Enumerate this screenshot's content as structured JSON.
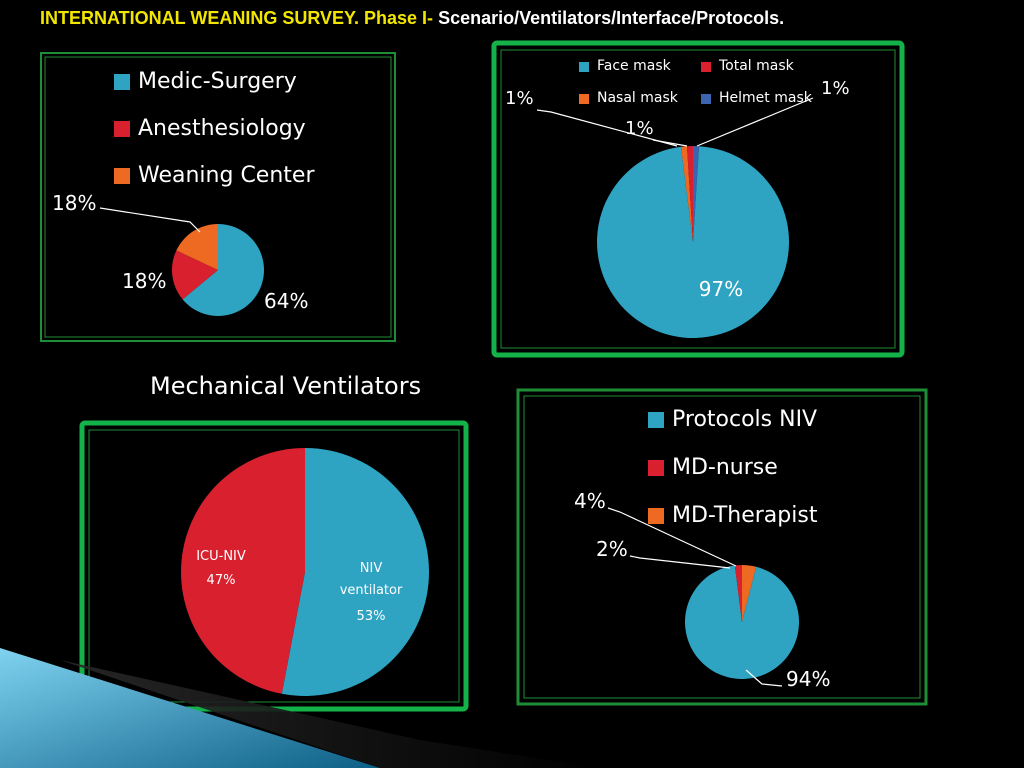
{
  "title": {
    "part1": "INTERNATIONAL  WEANING SURVEY. Phase I-",
    "part2": " Scenario/Ventilators/Interface/Protocols."
  },
  "colors": {
    "blue": "#2ea3c2",
    "red": "#d9202e",
    "orange": "#ee6a22",
    "navy": "#3c64b0",
    "frame": "#14b34a",
    "frame_thin": "#1e8e36"
  },
  "chart_data": [
    {
      "id": "scenario",
      "type": "pie",
      "legend_position": "top-left",
      "series": [
        {
          "name": "Medic-Surgery",
          "value": 64,
          "label": "64%"
        },
        {
          "name": "Anesthesiology",
          "value": 18,
          "label": "18%"
        },
        {
          "name": "Weaning Center",
          "value": 18,
          "label": "18%"
        }
      ]
    },
    {
      "id": "interface",
      "type": "pie",
      "legend_position": "top",
      "series": [
        {
          "name": "Face mask",
          "value": 97,
          "label": "97%"
        },
        {
          "name": "Total mask",
          "value": 1,
          "label": "1%"
        },
        {
          "name": "Nasal mask",
          "value": 1,
          "label": "1%"
        },
        {
          "name": "Helmet mask",
          "value": 1,
          "label": "1%"
        }
      ]
    },
    {
      "id": "ventilators",
      "type": "pie",
      "title": "Mechanical Ventilators",
      "series": [
        {
          "name": "NIV ventilator",
          "name_lines": [
            "NIV",
            "ventilator"
          ],
          "value": 53,
          "label": "53%"
        },
        {
          "name": "ICU-NIV",
          "name_lines": [
            "ICU-NIV"
          ],
          "value": 47,
          "label": "47%"
        }
      ]
    },
    {
      "id": "protocols",
      "type": "pie",
      "legend_position": "top",
      "series": [
        {
          "name": "Protocols NIV",
          "value": 94,
          "label": "94%"
        },
        {
          "name": "MD-nurse",
          "value": 2,
          "label": "2%"
        },
        {
          "name": "MD-Therapist",
          "value": 4,
          "label": "4%"
        }
      ]
    }
  ]
}
